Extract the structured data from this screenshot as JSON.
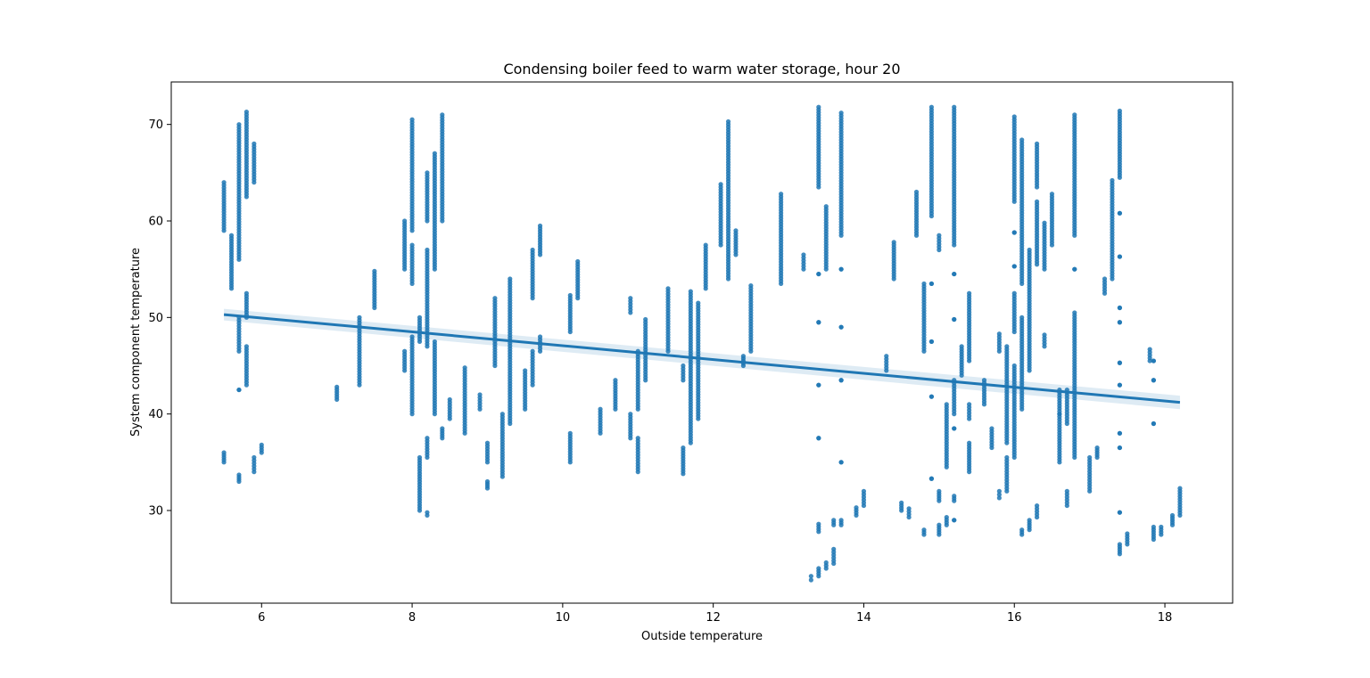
{
  "chart_data": {
    "type": "scatter",
    "title": "Condensing boiler feed to warm water storage, hour 20",
    "xlabel": "Outside temperature",
    "ylabel": "System component temperature",
    "xlim": [
      4.8,
      18.9
    ],
    "ylim": [
      20.4,
      74.4
    ],
    "xticks": [
      6,
      8,
      10,
      12,
      14,
      16,
      18
    ],
    "yticks": [
      30,
      40,
      50,
      60,
      70
    ],
    "grid": false,
    "colors": {
      "points": "#1f77b4",
      "line": "#1f77b4",
      "band": "#1f77b4"
    },
    "regression": {
      "x": [
        5.5,
        18.2
      ],
      "y": [
        50.3,
        41.2
      ],
      "ci_halfwidth": [
        0.6,
        0.7
      ]
    },
    "clusters": [
      {
        "x": 5.5,
        "ranges": [
          [
            59,
            64
          ],
          [
            35,
            36
          ]
        ]
      },
      {
        "x": 5.6,
        "ranges": [
          [
            53,
            58.5
          ]
        ]
      },
      {
        "x": 5.7,
        "ranges": [
          [
            46.5,
            50
          ],
          [
            56,
            70
          ],
          [
            42.5,
            42.5
          ],
          [
            33,
            33.7
          ]
        ]
      },
      {
        "x": 5.8,
        "ranges": [
          [
            50,
            52.5
          ],
          [
            62.5,
            71.3
          ],
          [
            43,
            47
          ]
        ]
      },
      {
        "x": 5.9,
        "ranges": [
          [
            64,
            68
          ],
          [
            34,
            35.5
          ]
        ]
      },
      {
        "x": 6.0,
        "ranges": [
          [
            36,
            36.8
          ]
        ]
      },
      {
        "x": 7.0,
        "ranges": [
          [
            41.5,
            42.8
          ]
        ]
      },
      {
        "x": 7.3,
        "ranges": [
          [
            43,
            50
          ]
        ]
      },
      {
        "x": 7.5,
        "ranges": [
          [
            51,
            54.8
          ]
        ]
      },
      {
        "x": 7.9,
        "ranges": [
          [
            55,
            60
          ],
          [
            44.5,
            46.5
          ]
        ]
      },
      {
        "x": 8.0,
        "ranges": [
          [
            59,
            70.5
          ],
          [
            40,
            48
          ],
          [
            53.5,
            57.5
          ]
        ]
      },
      {
        "x": 8.1,
        "ranges": [
          [
            47.5,
            50
          ],
          [
            30,
            35.5
          ]
        ]
      },
      {
        "x": 8.2,
        "ranges": [
          [
            47,
            57
          ],
          [
            29.5,
            29.8
          ],
          [
            35.5,
            37.5
          ],
          [
            60,
            65
          ]
        ]
      },
      {
        "x": 8.3,
        "ranges": [
          [
            40,
            47.5
          ],
          [
            55,
            67
          ]
        ]
      },
      {
        "x": 8.4,
        "ranges": [
          [
            60,
            71
          ],
          [
            37.5,
            38.5
          ]
        ]
      },
      {
        "x": 8.5,
        "ranges": [
          [
            39.5,
            41.5
          ]
        ]
      },
      {
        "x": 8.7,
        "ranges": [
          [
            38,
            44.8
          ]
        ]
      },
      {
        "x": 8.9,
        "ranges": [
          [
            40.5,
            42
          ]
        ]
      },
      {
        "x": 9.0,
        "ranges": [
          [
            32.3,
            33
          ],
          [
            35,
            37
          ]
        ]
      },
      {
        "x": 9.1,
        "ranges": [
          [
            45,
            52
          ]
        ]
      },
      {
        "x": 9.2,
        "ranges": [
          [
            33.5,
            40
          ]
        ]
      },
      {
        "x": 9.3,
        "ranges": [
          [
            39,
            54
          ]
        ]
      },
      {
        "x": 9.5,
        "ranges": [
          [
            40.5,
            44.5
          ]
        ]
      },
      {
        "x": 9.6,
        "ranges": [
          [
            43,
            46.5
          ],
          [
            52,
            57
          ]
        ]
      },
      {
        "x": 9.7,
        "ranges": [
          [
            46.5,
            48
          ],
          [
            56.5,
            59.5
          ]
        ]
      },
      {
        "x": 10.1,
        "ranges": [
          [
            48.5,
            52.3
          ],
          [
            35,
            38
          ]
        ]
      },
      {
        "x": 10.2,
        "ranges": [
          [
            52,
            55.8
          ]
        ]
      },
      {
        "x": 10.5,
        "ranges": [
          [
            38,
            40.5
          ]
        ]
      },
      {
        "x": 10.7,
        "ranges": [
          [
            40.5,
            43.5
          ]
        ]
      },
      {
        "x": 10.9,
        "ranges": [
          [
            37.5,
            40
          ],
          [
            50.5,
            52
          ]
        ]
      },
      {
        "x": 11.0,
        "ranges": [
          [
            34,
            37.5
          ],
          [
            40.5,
            46.5
          ]
        ]
      },
      {
        "x": 11.1,
        "ranges": [
          [
            43.5,
            49.8
          ]
        ]
      },
      {
        "x": 11.4,
        "ranges": [
          [
            46.5,
            53
          ]
        ]
      },
      {
        "x": 11.6,
        "ranges": [
          [
            33.8,
            36.5
          ],
          [
            43.5,
            45
          ]
        ]
      },
      {
        "x": 11.7,
        "ranges": [
          [
            37,
            52.7
          ]
        ]
      },
      {
        "x": 11.8,
        "ranges": [
          [
            39.5,
            51.5
          ]
        ]
      },
      {
        "x": 11.9,
        "ranges": [
          [
            53,
            57.5
          ]
        ]
      },
      {
        "x": 12.1,
        "ranges": [
          [
            57.5,
            63.8
          ]
        ]
      },
      {
        "x": 12.2,
        "ranges": [
          [
            54,
            70.3
          ]
        ]
      },
      {
        "x": 12.3,
        "ranges": [
          [
            56.5,
            59
          ]
        ]
      },
      {
        "x": 12.4,
        "ranges": [
          [
            45,
            46
          ]
        ]
      },
      {
        "x": 12.5,
        "ranges": [
          [
            46.5,
            53.3
          ]
        ]
      },
      {
        "x": 12.9,
        "ranges": [
          [
            53.5,
            62.8
          ]
        ]
      },
      {
        "x": 13.2,
        "ranges": [
          [
            55,
            56.5
          ]
        ]
      },
      {
        "x": 13.3,
        "ranges": [
          [
            22.8,
            23.2
          ]
        ]
      },
      {
        "x": 13.4,
        "ranges": [
          [
            63.5,
            71.8
          ],
          [
            23.2,
            24
          ],
          [
            27.8,
            28.6
          ],
          [
            54.5,
            54.5
          ],
          [
            49.5,
            49.5
          ],
          [
            43,
            43
          ],
          [
            37.5,
            37.5
          ]
        ]
      },
      {
        "x": 13.5,
        "ranges": [
          [
            55,
            61.5
          ],
          [
            24,
            24.6
          ]
        ]
      },
      {
        "x": 13.6,
        "ranges": [
          [
            24.5,
            26
          ],
          [
            28.5,
            29
          ]
        ]
      },
      {
        "x": 13.7,
        "ranges": [
          [
            58.5,
            71.2
          ],
          [
            28.5,
            29
          ],
          [
            55,
            55
          ],
          [
            49,
            49
          ],
          [
            43.5,
            43.5
          ],
          [
            35,
            35
          ]
        ]
      },
      {
        "x": 13.9,
        "ranges": [
          [
            29.5,
            30.3
          ]
        ]
      },
      {
        "x": 14.0,
        "ranges": [
          [
            30.5,
            32
          ]
        ]
      },
      {
        "x": 14.3,
        "ranges": [
          [
            44.5,
            46
          ]
        ]
      },
      {
        "x": 14.4,
        "ranges": [
          [
            54,
            57.8
          ]
        ]
      },
      {
        "x": 14.5,
        "ranges": [
          [
            30,
            30.8
          ]
        ]
      },
      {
        "x": 14.6,
        "ranges": [
          [
            29.3,
            30.2
          ]
        ]
      },
      {
        "x": 14.7,
        "ranges": [
          [
            58.5,
            63
          ]
        ]
      },
      {
        "x": 14.8,
        "ranges": [
          [
            46.5,
            53.5
          ],
          [
            27.5,
            28
          ]
        ]
      },
      {
        "x": 14.9,
        "ranges": [
          [
            60.5,
            71.8
          ],
          [
            47.5,
            47.5
          ],
          [
            53.5,
            53.5
          ],
          [
            41.8,
            41.8
          ],
          [
            33.3,
            33.3
          ]
        ]
      },
      {
        "x": 15.0,
        "ranges": [
          [
            57,
            58.5
          ],
          [
            27.5,
            28.5
          ],
          [
            31,
            32
          ]
        ]
      },
      {
        "x": 15.1,
        "ranges": [
          [
            34.5,
            41
          ],
          [
            28.5,
            29.3
          ]
        ]
      },
      {
        "x": 15.2,
        "ranges": [
          [
            57.5,
            71.8
          ],
          [
            40,
            43.5
          ],
          [
            31,
            31.5
          ],
          [
            54.5,
            54.5
          ],
          [
            49.8,
            49.8
          ],
          [
            38.5,
            38.5
          ],
          [
            29,
            29
          ]
        ]
      },
      {
        "x": 15.3,
        "ranges": [
          [
            44,
            47
          ]
        ]
      },
      {
        "x": 15.4,
        "ranges": [
          [
            45.5,
            52.5
          ],
          [
            34,
            37
          ],
          [
            39.5,
            41
          ]
        ]
      },
      {
        "x": 15.6,
        "ranges": [
          [
            41,
            43.5
          ]
        ]
      },
      {
        "x": 15.7,
        "ranges": [
          [
            36.5,
            38.5
          ]
        ]
      },
      {
        "x": 15.8,
        "ranges": [
          [
            31.3,
            32
          ],
          [
            46.5,
            48.3
          ]
        ]
      },
      {
        "x": 15.9,
        "ranges": [
          [
            32,
            35.5
          ],
          [
            37,
            47
          ]
        ]
      },
      {
        "x": 16.0,
        "ranges": [
          [
            35.5,
            45
          ],
          [
            48.5,
            52.5
          ],
          [
            62,
            70.8
          ],
          [
            55.3,
            55.3
          ],
          [
            58.8,
            58.8
          ]
        ]
      },
      {
        "x": 16.1,
        "ranges": [
          [
            40.5,
            50
          ],
          [
            53.5,
            68.4
          ],
          [
            27.5,
            28
          ]
        ]
      },
      {
        "x": 16.2,
        "ranges": [
          [
            44.5,
            57
          ],
          [
            28,
            29
          ]
        ]
      },
      {
        "x": 16.3,
        "ranges": [
          [
            55.5,
            62
          ],
          [
            29.3,
            30.5
          ],
          [
            63.5,
            68
          ]
        ]
      },
      {
        "x": 16.4,
        "ranges": [
          [
            47,
            48.2
          ],
          [
            55,
            59.8
          ]
        ]
      },
      {
        "x": 16.5,
        "ranges": [
          [
            57.5,
            62.8
          ]
        ]
      },
      {
        "x": 16.6,
        "ranges": [
          [
            35,
            40
          ],
          [
            40,
            42.5
          ]
        ]
      },
      {
        "x": 16.7,
        "ranges": [
          [
            30.5,
            32
          ],
          [
            39,
            42.5
          ]
        ]
      },
      {
        "x": 16.8,
        "ranges": [
          [
            58.5,
            71
          ],
          [
            35.5,
            50.5
          ],
          [
            55,
            55
          ]
        ]
      },
      {
        "x": 17.0,
        "ranges": [
          [
            32,
            35.5
          ]
        ]
      },
      {
        "x": 17.1,
        "ranges": [
          [
            35.5,
            36.5
          ]
        ]
      },
      {
        "x": 17.2,
        "ranges": [
          [
            52.5,
            54
          ]
        ]
      },
      {
        "x": 17.3,
        "ranges": [
          [
            54,
            64.2
          ]
        ]
      },
      {
        "x": 17.4,
        "ranges": [
          [
            64.5,
            71.4
          ],
          [
            25.5,
            26.5
          ],
          [
            29.8,
            29.8
          ],
          [
            36.5,
            36.5
          ],
          [
            38,
            38
          ],
          [
            43,
            43
          ],
          [
            45.3,
            45.3
          ],
          [
            49.5,
            49.5
          ],
          [
            51,
            51
          ],
          [
            56.3,
            56.3
          ],
          [
            60.8,
            60.8
          ]
        ]
      },
      {
        "x": 17.5,
        "ranges": [
          [
            26.5,
            27.6
          ]
        ]
      },
      {
        "x": 17.8,
        "ranges": [
          [
            45.5,
            46.7
          ]
        ]
      },
      {
        "x": 17.85,
        "ranges": [
          [
            27,
            28.3
          ],
          [
            39,
            39
          ],
          [
            43.5,
            43.5
          ],
          [
            45.5,
            45.5
          ]
        ]
      },
      {
        "x": 17.95,
        "ranges": [
          [
            27.5,
            28.3
          ]
        ]
      },
      {
        "x": 18.1,
        "ranges": [
          [
            28.5,
            29.5
          ]
        ]
      },
      {
        "x": 18.2,
        "ranges": [
          [
            29.5,
            32.3
          ]
        ]
      }
    ]
  }
}
